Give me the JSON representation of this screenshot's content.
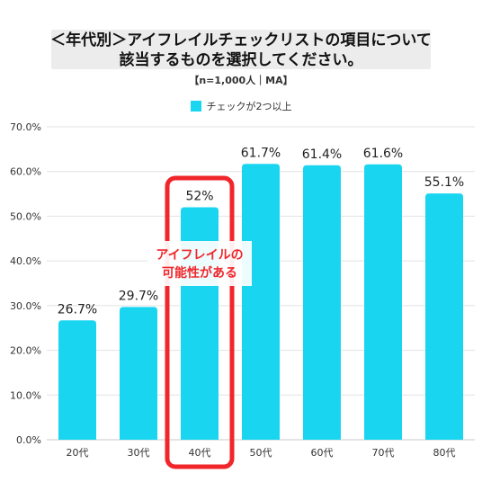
{
  "chart_data": {
    "type": "bar",
    "title_line1": "＜年代別＞アイフレイルチェックリストの項目について",
    "title_line2": "該当するものを選択してください。",
    "subtitle": "【n=1,000人｜MA】",
    "categories": [
      "20代",
      "30代",
      "40代",
      "50代",
      "60代",
      "70代",
      "80代"
    ],
    "series": [
      {
        "name": "チェックが2つ以上",
        "values": [
          26.7,
          29.7,
          52,
          61.7,
          61.4,
          61.6,
          55.1
        ],
        "data_labels": [
          "26.7%",
          "29.7%",
          "52%",
          "61.7%",
          "61.4%",
          "61.6%",
          "55.1%"
        ],
        "color": "#1ad5f0"
      }
    ],
    "ylim": [
      0,
      70
    ],
    "yticks": [
      "0.0%",
      "10.0%",
      "20.0%",
      "30.0%",
      "40.0%",
      "50.0%",
      "60.0%",
      "70.0%"
    ],
    "grid": true,
    "legend": "top-center",
    "annotation": {
      "target_category": "40代",
      "lines": [
        "アイフレイルの",
        "可能性がある"
      ],
      "color": "#f0262b"
    }
  }
}
